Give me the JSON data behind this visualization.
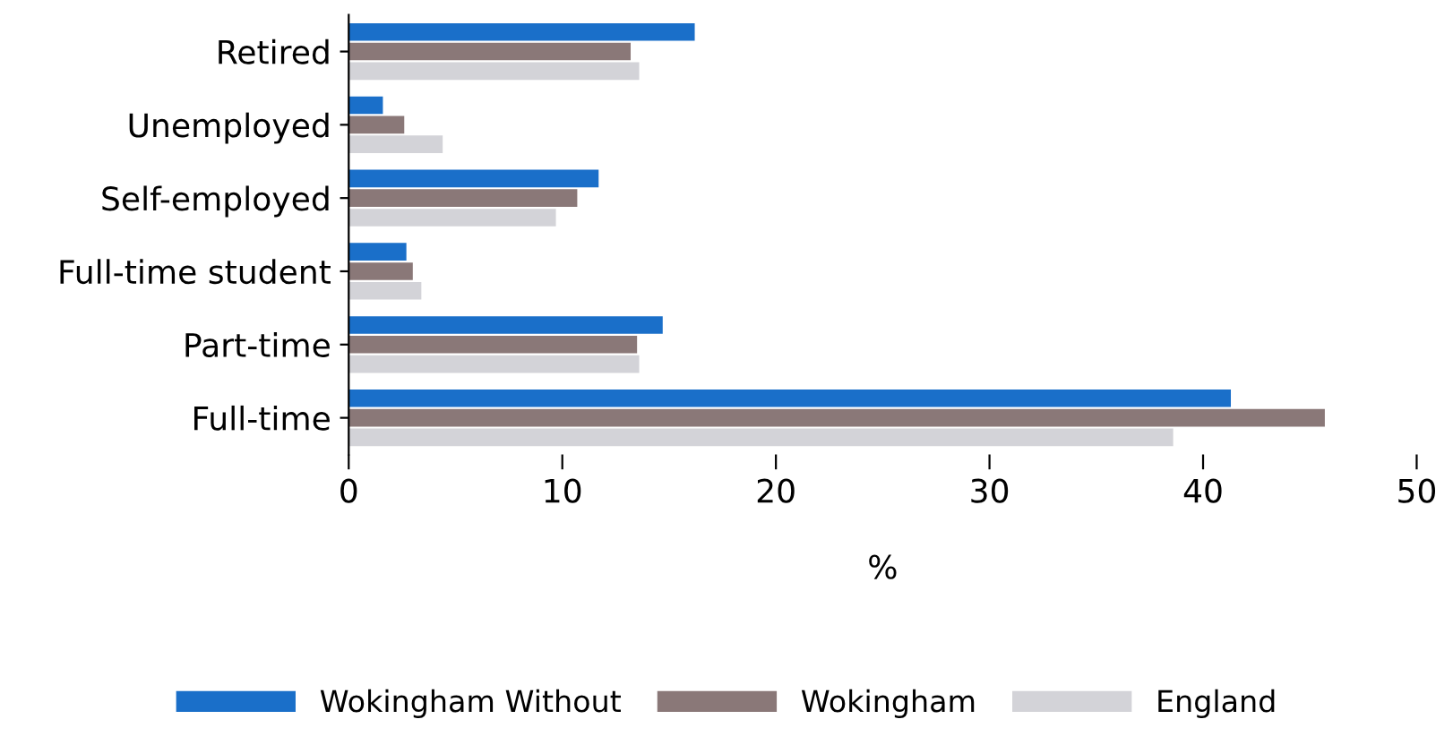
{
  "chart_data": {
    "type": "bar",
    "orientation": "horizontal",
    "xlabel": "%",
    "categories": [
      "Retired",
      "Unemployed",
      "Self-employed",
      "Full-time student",
      "Part-time",
      "Full-time"
    ],
    "series": [
      {
        "name": "Wokingham Without",
        "color": "#1a6fc9",
        "values": [
          16.2,
          1.6,
          11.7,
          2.7,
          14.7,
          41.3
        ]
      },
      {
        "name": "Wokingham",
        "color": "#8a7878",
        "values": [
          13.2,
          2.6,
          10.7,
          3.0,
          13.5,
          45.7
        ]
      },
      {
        "name": "England",
        "color": "#d3d3d8",
        "values": [
          13.6,
          4.4,
          9.7,
          3.4,
          13.6,
          38.6
        ]
      }
    ],
    "xlim": [
      0,
      50
    ],
    "xticks": [
      0,
      10,
      20,
      30,
      40,
      50
    ],
    "grid": false,
    "legend": "bottom"
  }
}
